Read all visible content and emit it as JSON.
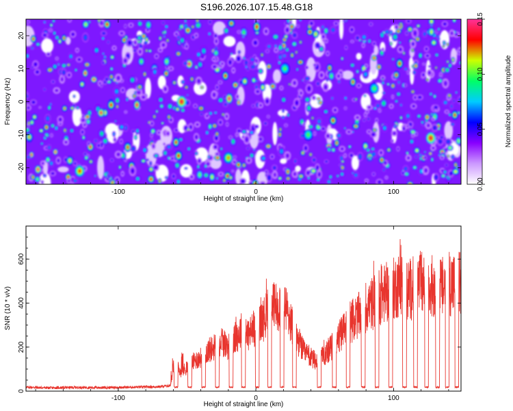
{
  "title": "S196.2026.107.15.48.G18",
  "chart_data": [
    {
      "type": "heatmap",
      "xlabel": "Height of straight line (km)",
      "ylabel": "Frequency (Hz)",
      "xlim": [
        -167,
        149
      ],
      "ylim": [
        -25,
        25
      ],
      "x_ticks": [
        -100,
        0,
        100
      ],
      "y_ticks": [
        -20,
        -10,
        0,
        10,
        20
      ],
      "colorbar": {
        "label": "Normalized spectral amplitude",
        "range": [
          0,
          0.15
        ],
        "ticks": [
          0,
          0.05,
          0.1,
          0.15
        ],
        "tick_labels": [
          "0.00",
          "0.05",
          "0.10",
          "0.15"
        ],
        "colors": [
          "#ffffff",
          "#cc99ff",
          "#8800ff",
          "#0000ff",
          "#00ccff",
          "#00ff66",
          "#ccff00",
          "#ff0000",
          "#ff3399"
        ]
      },
      "hotspots": [
        {
          "x": -54,
          "y": 0,
          "value": 0.14
        },
        {
          "x": -128,
          "y": -21,
          "value": 0.13
        },
        {
          "x": 127,
          "y": -11,
          "value": 0.14
        },
        {
          "x": -20,
          "y": -17,
          "value": 0.12
        },
        {
          "x": 86,
          "y": 4,
          "value": 0.1
        },
        {
          "x": 21,
          "y": 10,
          "value": 0.1
        },
        {
          "x": 38,
          "y": -10,
          "value": 0.1
        }
      ]
    },
    {
      "type": "line",
      "xlabel": "Height of straight line (km)",
      "ylabel": "SNR (10 * v/v)",
      "xlim": [
        -167,
        149
      ],
      "ylim": [
        0,
        750
      ],
      "x_ticks": [
        -100,
        0,
        100
      ],
      "y_ticks": [
        0,
        200,
        400,
        600
      ],
      "series": [
        {
          "name": "SNR",
          "color": "#e8352e",
          "x": [
            -167,
            -150,
            -130,
            -110,
            -90,
            -70,
            -62,
            -60,
            -55,
            -50,
            -45,
            -40,
            -35,
            -30,
            -25,
            -20,
            -15,
            -10,
            -5,
            0,
            5,
            10,
            15,
            20,
            25,
            30,
            35,
            40,
            45,
            50,
            55,
            60,
            65,
            70,
            75,
            80,
            85,
            90,
            95,
            100,
            105,
            110,
            115,
            120,
            125,
            130,
            135,
            140,
            145,
            149
          ],
          "y": [
            18,
            15,
            17,
            16,
            18,
            20,
            25,
            140,
            110,
            130,
            170,
            190,
            230,
            250,
            290,
            250,
            300,
            350,
            320,
            370,
            400,
            470,
            480,
            500,
            400,
            300,
            220,
            190,
            160,
            210,
            250,
            300,
            360,
            400,
            430,
            480,
            500,
            540,
            560,
            580,
            610,
            570,
            590,
            610,
            600,
            590,
            580,
            620,
            600,
            610
          ]
        }
      ],
      "dropout_centers": [
        -58,
        -48,
        -38,
        -28,
        -18,
        -9,
        1,
        10,
        19,
        28,
        46,
        57,
        67,
        78,
        88,
        98,
        108,
        116,
        124,
        132,
        139,
        146
      ],
      "baseline": 15
    }
  ]
}
